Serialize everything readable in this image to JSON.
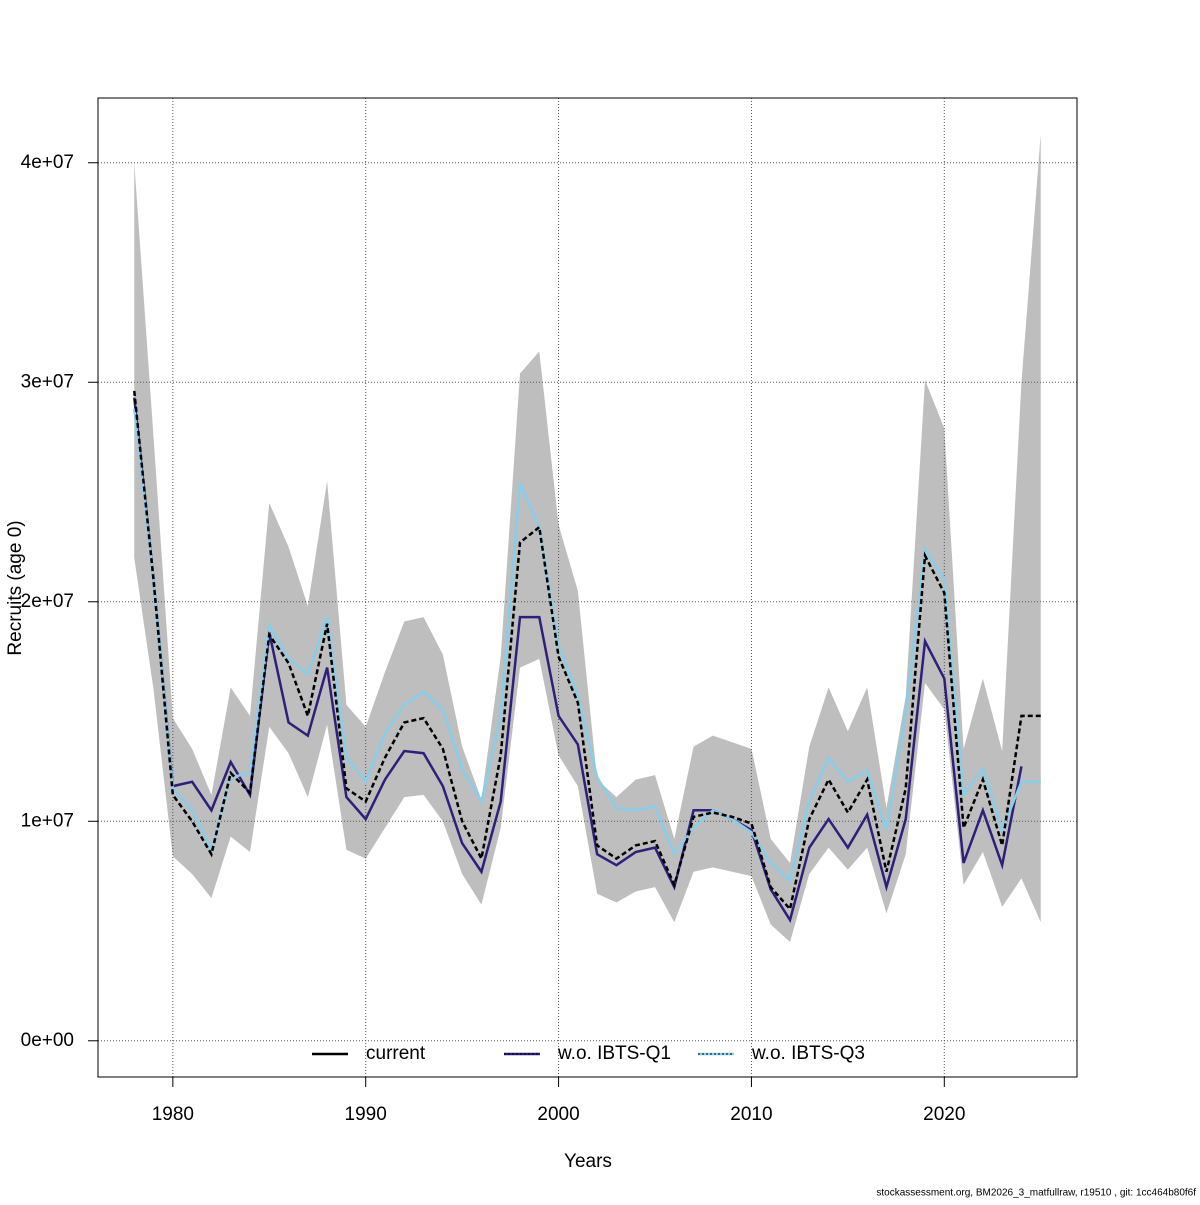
{
  "chart_data": {
    "type": "line",
    "x_label": "Years",
    "y_label": "Recruits (age 0)",
    "footer": "stockassessment.org, BM2026_3_matfullraw, r19510 , git: 1cc464b80f6f",
    "x": [
      1978,
      1979,
      1980,
      1981,
      1982,
      1983,
      1984,
      1985,
      1986,
      1987,
      1988,
      1989,
      1990,
      1991,
      1992,
      1993,
      1994,
      1995,
      1996,
      1997,
      1998,
      1999,
      2000,
      2001,
      2002,
      2003,
      2004,
      2005,
      2006,
      2007,
      2008,
      2009,
      2010,
      2011,
      2012,
      2013,
      2014,
      2015,
      2016,
      2017,
      2018,
      2019,
      2020,
      2021,
      2022,
      2023,
      2024,
      2025
    ],
    "band": {
      "color": "#bebebe",
      "upper": [
        40000000,
        27500000,
        14700000,
        13300000,
        11200000,
        16100000,
        14800000,
        24500000,
        22500000,
        19800000,
        25500000,
        15300000,
        14300000,
        16800000,
        19100000,
        19300000,
        17600000,
        13400000,
        11000000,
        17500000,
        30400000,
        31400000,
        23500000,
        20500000,
        11900000,
        11100000,
        11900000,
        12100000,
        9200000,
        13400000,
        13900000,
        13600000,
        13300000,
        9200000,
        8100000,
        13400000,
        16100000,
        14100000,
        16100000,
        10600000,
        15700000,
        30100000,
        27900000,
        13300000,
        16500000,
        13200000,
        30000000,
        41300000
      ],
      "lower": [
        22000000,
        16000000,
        8400000,
        7600000,
        6500000,
        9300000,
        8600000,
        14300000,
        13100000,
        11100000,
        14400000,
        8700000,
        8300000,
        9700000,
        11100000,
        11200000,
        10000000,
        7600000,
        6200000,
        9700000,
        17000000,
        17400000,
        13000000,
        11600000,
        6700000,
        6300000,
        6800000,
        7000000,
        5400000,
        7700000,
        7900000,
        7700000,
        7500000,
        5300000,
        4500000,
        7600000,
        8800000,
        7800000,
        8800000,
        5800000,
        8500000,
        16300000,
        15100000,
        7100000,
        8600000,
        6100000,
        7400000,
        5400000
      ]
    },
    "series": [
      {
        "name": "current",
        "color": "#000000",
        "values": [
          29600000,
          21000000,
          11200000,
          10000000,
          8500000,
          12200000,
          11300000,
          18500000,
          17200000,
          14800000,
          19000000,
          11500000,
          10900000,
          12900000,
          14500000,
          14700000,
          13300000,
          10000000,
          8300000,
          13000000,
          22700000,
          23400000,
          17500000,
          15400000,
          8900000,
          8300000,
          8900000,
          9100000,
          7100000,
          10200000,
          10400000,
          10200000,
          9900000,
          7000000,
          6000000,
          10100000,
          11900000,
          10400000,
          11900000,
          7700000,
          11500000,
          22100000,
          20400000,
          9700000,
          11900000,
          8900000,
          14800000,
          14800000
        ]
      },
      {
        "name": "w.o. IBTS-Q1",
        "color": "#2e1f7a",
        "values": [
          29300000,
          21000000,
          11600000,
          11800000,
          10500000,
          12700000,
          11200000,
          18600000,
          14500000,
          13900000,
          17000000,
          11100000,
          10100000,
          11900000,
          13200000,
          13100000,
          11600000,
          9000000,
          7700000,
          10900000,
          19300000,
          19300000,
          14800000,
          13500000,
          8500000,
          8000000,
          8600000,
          8800000,
          7000000,
          10500000,
          10500000,
          10100000,
          9600000,
          6900000,
          5500000,
          8800000,
          10100000,
          8800000,
          10300000,
          7000000,
          10100000,
          18200000,
          16500000,
          8100000,
          10500000,
          8000000,
          12500000,
          null
        ]
      },
      {
        "name": "w.o. IBTS-Q3",
        "color": "#87ceeb",
        "values": [
          28800000,
          21000000,
          11500000,
          10500000,
          8700000,
          12000000,
          12200000,
          18900000,
          17400000,
          16700000,
          19300000,
          12900000,
          11800000,
          14000000,
          15300000,
          15900000,
          15100000,
          12400000,
          10900000,
          14800000,
          25400000,
          23400000,
          18000000,
          15700000,
          12000000,
          10600000,
          10500000,
          10700000,
          8500000,
          9700000,
          10500000,
          10100000,
          9500000,
          8100000,
          7300000,
          10900000,
          12900000,
          11800000,
          12300000,
          9600000,
          15000000,
          22400000,
          21000000,
          11200000,
          12400000,
          9600000,
          11800000,
          11800000
        ]
      }
    ],
    "xlim": [
      1976.12,
      2026.88
    ],
    "xticks": [
      1980,
      1990,
      2000,
      2010,
      2020
    ],
    "ylim": [
      -1650000,
      42950000
    ],
    "yticks": [
      {
        "value": 0,
        "label": "0e+00"
      },
      {
        "value": 10000000,
        "label": "1e+07"
      },
      {
        "value": 20000000,
        "label": "2e+07"
      },
      {
        "value": 30000000,
        "label": "3e+07"
      },
      {
        "value": 40000000,
        "label": "4e+07"
      }
    ],
    "grid": true,
    "legend": "bottom"
  }
}
